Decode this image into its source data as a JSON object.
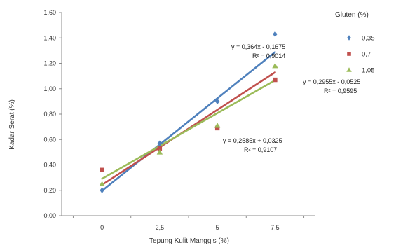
{
  "chart_data": {
    "type": "scatter",
    "xlabel": "Tepung Kulit Manggis (%)",
    "ylabel": "Kadar Serat (%)",
    "x_ticks": [
      "0",
      "2,5",
      "5",
      "7,5"
    ],
    "x_values": [
      0,
      2.5,
      5,
      7.5
    ],
    "ylim": [
      0,
      1.6
    ],
    "y_ticks": [
      "0,00",
      "0,20",
      "0,40",
      "0,60",
      "0,80",
      "1,00",
      "1,20",
      "1,40",
      "1,60"
    ],
    "grid": false,
    "legend": {
      "title": "Gluten (%)",
      "placement": "right"
    },
    "series": [
      {
        "name": "0,35",
        "color": "#4f81bd",
        "marker": "diamond",
        "values": [
          0.2,
          0.57,
          0.9,
          1.43
        ],
        "trendline": {
          "slope": 0.364,
          "intercept": -0.1675,
          "equation": "y = 0,364x - 0,1675",
          "r2": "R² = 0,9014"
        }
      },
      {
        "name": "0,7",
        "color": "#c0504d",
        "marker": "square",
        "values": [
          0.36,
          0.53,
          0.69,
          1.07
        ],
        "trendline": {
          "slope": 0.2955,
          "intercept": -0.0525,
          "equation": "y = 0,2955x - 0,0525",
          "r2": "R² = 0,9595"
        }
      },
      {
        "name": "1,05",
        "color": "#9bbb59",
        "marker": "triangle",
        "values": [
          0.25,
          0.5,
          0.71,
          1.18
        ],
        "trendline": {
          "slope": 0.2585,
          "intercept": 0.0325,
          "equation": "y = 0,2585x + 0,0325",
          "r2": "R² = 0,9107"
        }
      }
    ]
  }
}
